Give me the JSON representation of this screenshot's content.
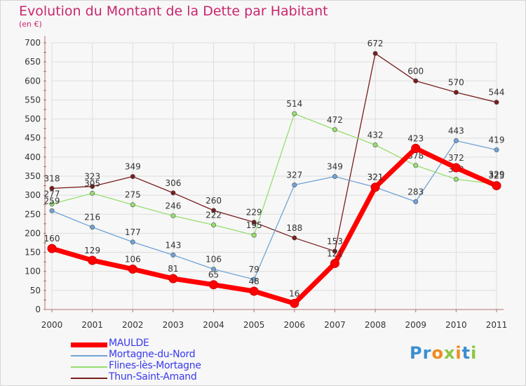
{
  "header": {
    "title": "Evolution du Montant de la Dette par Habitant",
    "subtitle": "(en €)"
  },
  "brand": {
    "logo_text": "Proxiti",
    "logo_letters": [
      "P",
      "r",
      "o",
      "x",
      "i",
      "t",
      "i"
    ],
    "logo_colors": [
      "#3a8fd0",
      "#3a8fd0",
      "#f08a1c",
      "#8cc63f",
      "#f08a1c",
      "#3a8fd0",
      "#8cc63f"
    ]
  },
  "chart_data": {
    "type": "line",
    "title": "Evolution du Montant de la Dette par Habitant",
    "subtitle": "(en €)",
    "x": [
      "2000",
      "2001",
      "2002",
      "2003",
      "2004",
      "2005",
      "2006",
      "2007",
      "2008",
      "2009",
      "2010",
      "2011"
    ],
    "ylim": [
      0,
      700
    ],
    "yticks": [
      0,
      50,
      100,
      150,
      200,
      250,
      300,
      350,
      400,
      450,
      500,
      550,
      600,
      650,
      700
    ],
    "grid": true,
    "legend_position": "bottom-left",
    "series": [
      {
        "name": "MAULDE",
        "color": "#ff0000",
        "values": [
          160,
          129,
          106,
          81,
          65,
          48,
          16,
          121,
          321,
          423,
          372,
          325
        ]
      },
      {
        "name": "Mortagne-du-Nord",
        "color": "#6fa3d6",
        "values": [
          259,
          216,
          177,
          143,
          106,
          79,
          327,
          349,
          321,
          283,
          443,
          419
        ]
      },
      {
        "name": "Flines-lès-Mortagne",
        "color": "#96de6e",
        "values": [
          277,
          305,
          275,
          246,
          222,
          195,
          514,
          472,
          432,
          378,
          342,
          329
        ]
      },
      {
        "name": "Thun-Saint-Amand",
        "color": "#7a1d1d",
        "values": [
          318,
          323,
          349,
          306,
          260,
          229,
          188,
          153,
          672,
          600,
          570,
          544
        ]
      }
    ]
  }
}
